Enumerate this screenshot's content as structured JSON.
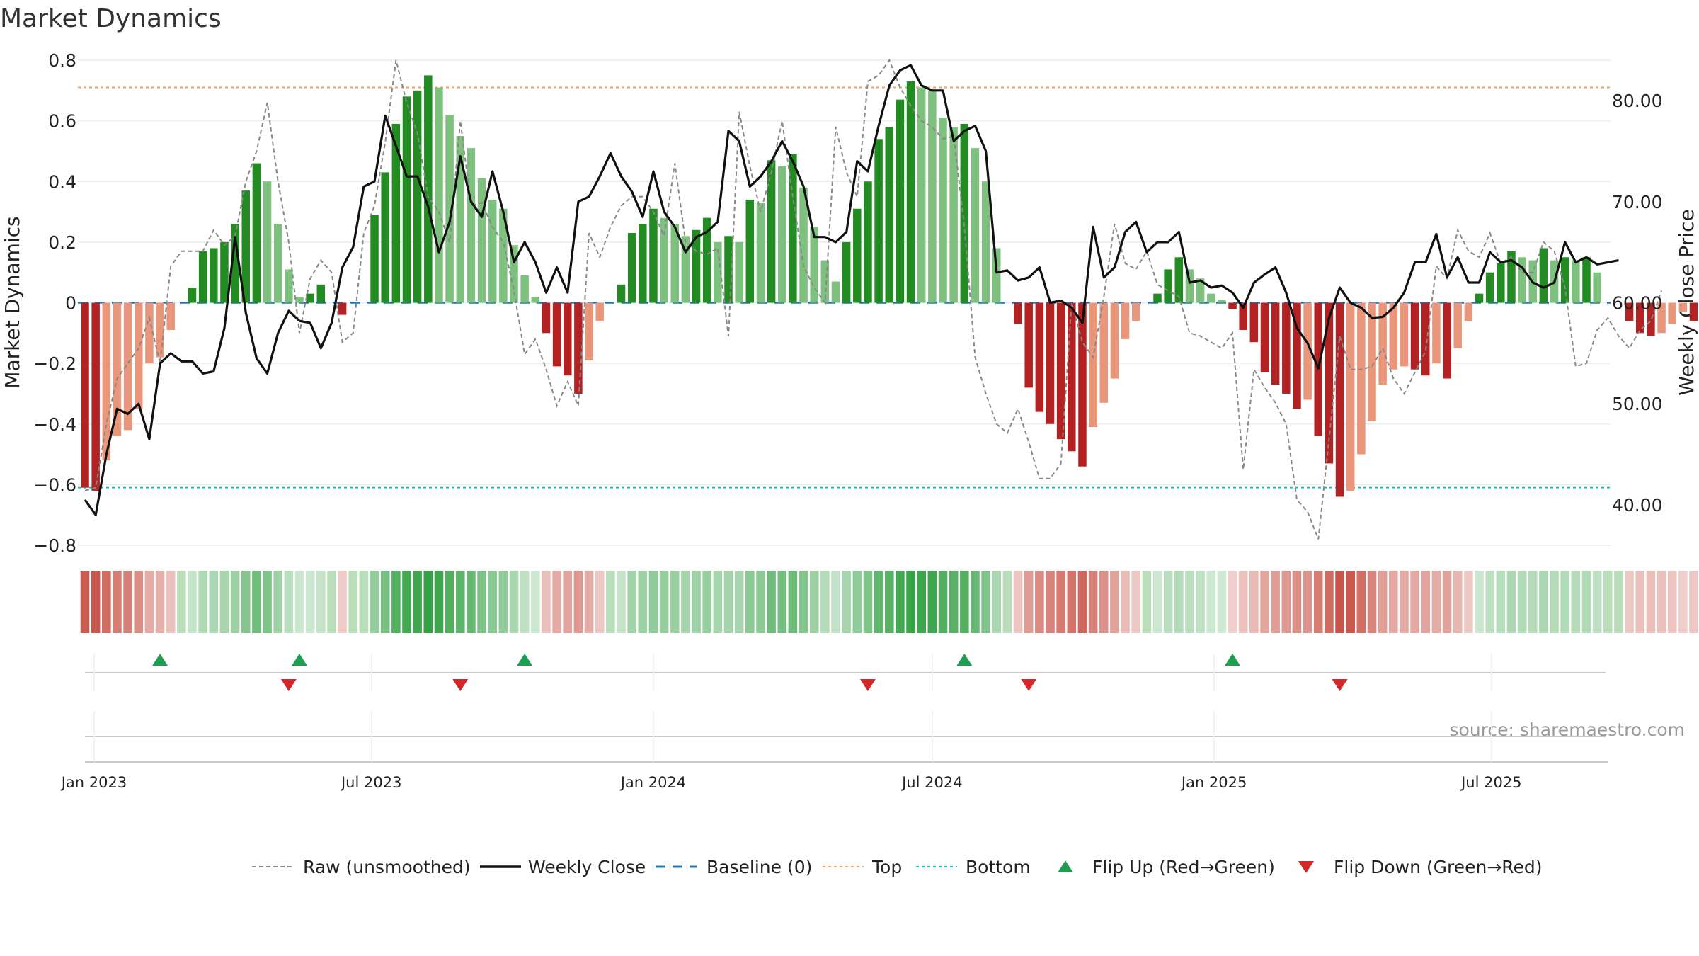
{
  "title": "Market Dynamics",
  "source": "source: sharemaestro.com",
  "colors": {
    "pos_strong": "#228b22",
    "pos_weak": "#7ec17e",
    "neg_strong": "#b22222",
    "neg_weak": "#e9967a",
    "raw": "#888888",
    "close": "#111111",
    "baseline": "#1f77b4",
    "top": "#f4a460",
    "bottom": "#17becf",
    "flip_up": "#1e9e50",
    "flip_down": "#d62728"
  },
  "chart_data": {
    "type": "bar",
    "title": "Market Dynamics",
    "ylabel": "Market Dynamics",
    "y2label": "Weekly Close Price",
    "ylim": [
      -0.8,
      0.8
    ],
    "y2lim": [
      36,
      84
    ],
    "yticks": [
      {
        "value": 0.8,
        "label": "0.8"
      },
      {
        "value": 0.6,
        "label": "0.6"
      },
      {
        "value": 0.4,
        "label": "0.4"
      },
      {
        "value": 0.2,
        "label": "0.2"
      },
      {
        "value": 0,
        "label": "0"
      },
      {
        "value": -0.2,
        "label": "−0.2"
      },
      {
        "value": -0.4,
        "label": "−0.4"
      },
      {
        "value": -0.6,
        "label": "−0.6"
      },
      {
        "value": -0.8,
        "label": "−0.8"
      }
    ],
    "y2ticks": [
      {
        "value": 80,
        "label": "80.00"
      },
      {
        "value": 70,
        "label": "70.00"
      },
      {
        "value": 60,
        "label": "60.00"
      },
      {
        "value": 50,
        "label": "50.00"
      },
      {
        "value": 40,
        "label": "40.00"
      }
    ],
    "x_start": "2022-12-26",
    "xticks": [
      {
        "date": "2023-01-01",
        "label": "Jan 2023"
      },
      {
        "date": "2023-07-01",
        "label": "Jul 2023"
      },
      {
        "date": "2024-01-01",
        "label": "Jan 2024"
      },
      {
        "date": "2024-07-01",
        "label": "Jul 2024"
      },
      {
        "date": "2025-01-01",
        "label": "Jan 2025"
      },
      {
        "date": "2025-07-01",
        "label": "Jul 2025"
      }
    ],
    "top_level": 0.71,
    "bottom_level": -0.61,
    "series": [
      {
        "name": "Market Dynamics",
        "values": [
          -0.61,
          -0.62,
          -0.52,
          -0.44,
          -0.42,
          -0.35,
          -0.2,
          -0.18,
          -0.09,
          0.0,
          0.05,
          0.17,
          0.18,
          0.2,
          0.26,
          0.37,
          0.46,
          0.4,
          0.26,
          0.11,
          0.02,
          0.03,
          0.06,
          0.0,
          -0.04,
          0.0,
          0.0,
          0.29,
          0.43,
          0.59,
          0.68,
          0.7,
          0.75,
          0.71,
          0.62,
          0.55,
          0.51,
          0.41,
          0.34,
          0.31,
          0.19,
          0.09,
          0.02,
          -0.1,
          -0.21,
          -0.24,
          -0.3,
          -0.19,
          -0.06,
          0.0,
          0.06,
          0.23,
          0.26,
          0.31,
          0.28,
          0.26,
          0.22,
          0.24,
          0.28,
          0.2,
          0.22,
          0.2,
          0.34,
          0.33,
          0.47,
          0.45,
          0.49,
          0.38,
          0.25,
          0.14,
          0.07,
          0.2,
          0.31,
          0.4,
          0.54,
          0.58,
          0.67,
          0.73,
          0.71,
          0.7,
          0.61,
          0.58,
          0.59,
          0.51,
          0.4,
          0.18,
          0.0,
          -0.07,
          -0.28,
          -0.36,
          -0.4,
          -0.45,
          -0.49,
          -0.54,
          -0.41,
          -0.33,
          -0.25,
          -0.12,
          -0.06,
          0.0,
          0.03,
          0.11,
          0.15,
          0.11,
          0.08,
          0.03,
          0.01,
          -0.02,
          -0.09,
          -0.13,
          -0.23,
          -0.27,
          -0.3,
          -0.35,
          -0.32,
          -0.44,
          -0.53,
          -0.64,
          -0.62,
          -0.5,
          -0.39,
          -0.27,
          -0.22,
          -0.21,
          -0.22,
          -0.24,
          -0.2,
          -0.25,
          -0.15,
          -0.06,
          0.03,
          0.1,
          0.13,
          0.17,
          0.15,
          0.14,
          0.18,
          0.14,
          0.15,
          0.14,
          0.15,
          0.1,
          0.0,
          0.0,
          -0.06,
          -0.1,
          -0.11,
          -0.1,
          -0.07,
          -0.03,
          -0.06,
          -0.04
        ]
      },
      {
        "name": "Raw (unsmoothed)",
        "values": [
          -0.62,
          -0.61,
          -0.4,
          -0.25,
          -0.2,
          -0.15,
          -0.05,
          -0.2,
          0.12,
          0.17,
          0.17,
          0.17,
          0.24,
          0.19,
          0.22,
          0.4,
          0.5,
          0.66,
          0.4,
          0.2,
          -0.1,
          0.08,
          0.14,
          0.1,
          -0.13,
          -0.1,
          0.23,
          0.32,
          0.53,
          0.8,
          0.66,
          0.56,
          0.35,
          0.3,
          0.2,
          0.6,
          0.32,
          0.33,
          0.25,
          0.2,
          0.04,
          -0.17,
          -0.12,
          -0.22,
          -0.34,
          -0.26,
          -0.34,
          0.23,
          0.15,
          0.25,
          0.32,
          0.35,
          0.35,
          0.3,
          0.22,
          0.46,
          0.2,
          0.17,
          0.16,
          0.18,
          -0.11,
          0.63,
          0.45,
          0.3,
          0.43,
          0.6,
          0.35,
          0.12,
          0.05,
          0.0,
          0.58,
          0.43,
          0.35,
          0.73,
          0.75,
          0.8,
          0.71,
          0.65,
          0.6,
          0.58,
          0.54,
          0.55,
          0.25,
          -0.18,
          -0.3,
          -0.4,
          -0.43,
          -0.35,
          -0.46,
          -0.58,
          -0.58,
          -0.53,
          0.0,
          -0.13,
          -0.18,
          0.02,
          0.26,
          0.13,
          0.11,
          0.17,
          0.06,
          0.04,
          0.02,
          -0.1,
          -0.11,
          -0.13,
          -0.15,
          -0.1,
          -0.55,
          -0.22,
          -0.28,
          -0.33,
          -0.4,
          -0.65,
          -0.69,
          -0.78,
          -0.45,
          -0.11,
          -0.22,
          -0.22,
          -0.21,
          -0.15,
          -0.25,
          -0.3,
          -0.23,
          -0.16,
          0.12,
          0.08,
          0.24,
          0.17,
          0.15,
          0.23,
          0.13,
          0.15,
          0.1,
          0.1,
          0.2,
          0.17,
          0.05,
          -0.21,
          -0.2,
          -0.09,
          -0.05,
          -0.11,
          -0.15,
          -0.09,
          -0.06,
          0.04
        ]
      },
      {
        "name": "Weekly Close",
        "values": [
          40.5,
          39.0,
          45.0,
          49.5,
          49.0,
          50.0,
          46.5,
          54.0,
          55.0,
          54.2,
          54.2,
          53.0,
          53.2,
          57.5,
          66.5,
          59.0,
          54.5,
          53.0,
          57.0,
          59.2,
          58.2,
          58.0,
          55.5,
          58.0,
          63.5,
          65.5,
          71.5,
          72.0,
          78.5,
          75.5,
          72.5,
          72.5,
          69.5,
          65.0,
          68.0,
          74.5,
          70.0,
          68.5,
          73.0,
          69.0,
          64.0,
          66.0,
          64.0,
          61.0,
          63.5,
          61.0,
          70.0,
          70.5,
          72.5,
          74.8,
          72.5,
          71.0,
          68.5,
          73.0,
          69.0,
          67.5,
          65.0,
          66.5,
          67.0,
          68.0,
          77.0,
          76.0,
          71.5,
          72.5,
          74.0,
          76.0,
          74.0,
          71.5,
          66.5,
          66.5,
          66.0,
          67.0,
          74.0,
          73.0,
          77.5,
          81.5,
          83.0,
          83.5,
          81.5,
          81.0,
          81.0,
          76.0,
          77.0,
          77.5,
          75.0,
          63.0,
          63.2,
          62.2,
          62.5,
          63.5,
          60.0,
          60.2,
          59.5,
          58.0,
          67.5,
          62.5,
          63.5,
          67.0,
          68.0,
          65.0,
          66.0,
          66.0,
          67.0,
          62.0,
          62.2,
          61.5,
          61.7,
          61.0,
          59.5,
          62.0,
          62.8,
          63.5,
          61.0,
          57.5,
          56.0,
          53.5,
          58.5,
          61.5,
          60.0,
          59.5,
          58.5,
          58.6,
          59.5,
          61.0,
          64.0,
          64.0,
          66.8,
          62.5,
          64.5,
          62.0,
          62.0,
          65.0,
          64.0,
          64.2,
          63.5,
          62.0,
          61.5,
          62.0,
          66.0,
          64.0,
          64.5,
          63.8,
          64.0,
          64.2
        ]
      }
    ],
    "flip_up_weeks": [
      7,
      20,
      41,
      82,
      107
    ],
    "flip_down_weeks": [
      19,
      35,
      73,
      88,
      117
    ],
    "legend": {
      "position": "bottom",
      "items": [
        {
          "label": "Raw (unsmoothed)",
          "kind": "dashed-line",
          "color": "#888888"
        },
        {
          "label": "Weekly Close",
          "kind": "line",
          "color": "#111111"
        },
        {
          "label": "Baseline (0)",
          "kind": "dash-line",
          "color": "#1f77b4"
        },
        {
          "label": "Top",
          "kind": "dotted-line",
          "color": "#f4a460"
        },
        {
          "label": "Bottom",
          "kind": "dotted-line",
          "color": "#17becf"
        },
        {
          "label": "Flip Up (Red→Green)",
          "kind": "triangle-up",
          "color": "#1e9e50"
        },
        {
          "label": "Flip Down (Green→Red)",
          "kind": "triangle-down",
          "color": "#d62728"
        }
      ]
    }
  }
}
